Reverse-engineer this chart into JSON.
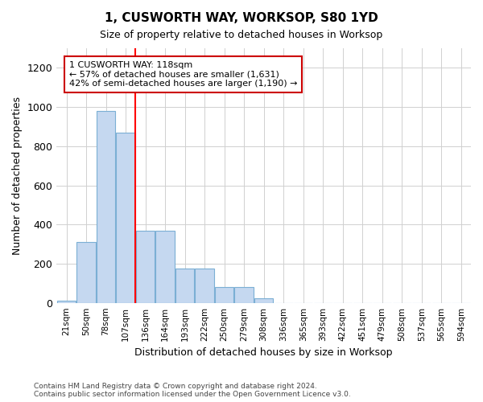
{
  "title": "1, CUSWORTH WAY, WORKSOP, S80 1YD",
  "subtitle": "Size of property relative to detached houses in Worksop",
  "xlabel": "Distribution of detached houses by size in Worksop",
  "ylabel": "Number of detached properties",
  "bar_categories": [
    "21sqm",
    "50sqm",
    "78sqm",
    "107sqm",
    "136sqm",
    "164sqm",
    "193sqm",
    "222sqm",
    "250sqm",
    "279sqm",
    "308sqm",
    "336sqm",
    "365sqm",
    "393sqm",
    "422sqm",
    "451sqm",
    "479sqm",
    "508sqm",
    "537sqm",
    "565sqm",
    "594sqm"
  ],
  "bar_values": [
    10,
    310,
    980,
    870,
    370,
    370,
    175,
    175,
    80,
    80,
    22,
    0,
    0,
    0,
    0,
    0,
    0,
    0,
    0,
    0,
    0
  ],
  "bar_color": "#c5d8f0",
  "bar_edge_color": "#7bafd4",
  "annotation_text": "1 CUSWORTH WAY: 118sqm\n← 57% of detached houses are smaller (1,631)\n42% of semi-detached houses are larger (1,190) →",
  "annotation_box_color": "#ffffff",
  "annotation_box_edge_color": "#cc0000",
  "red_line_x": 3.47,
  "ylim": [
    0,
    1300
  ],
  "yticks": [
    0,
    200,
    400,
    600,
    800,
    1000,
    1200
  ],
  "footer": "Contains HM Land Registry data © Crown copyright and database right 2024.\nContains public sector information licensed under the Open Government Licence v3.0.",
  "background_color": "#ffffff",
  "grid_color": "#d0d0d0"
}
